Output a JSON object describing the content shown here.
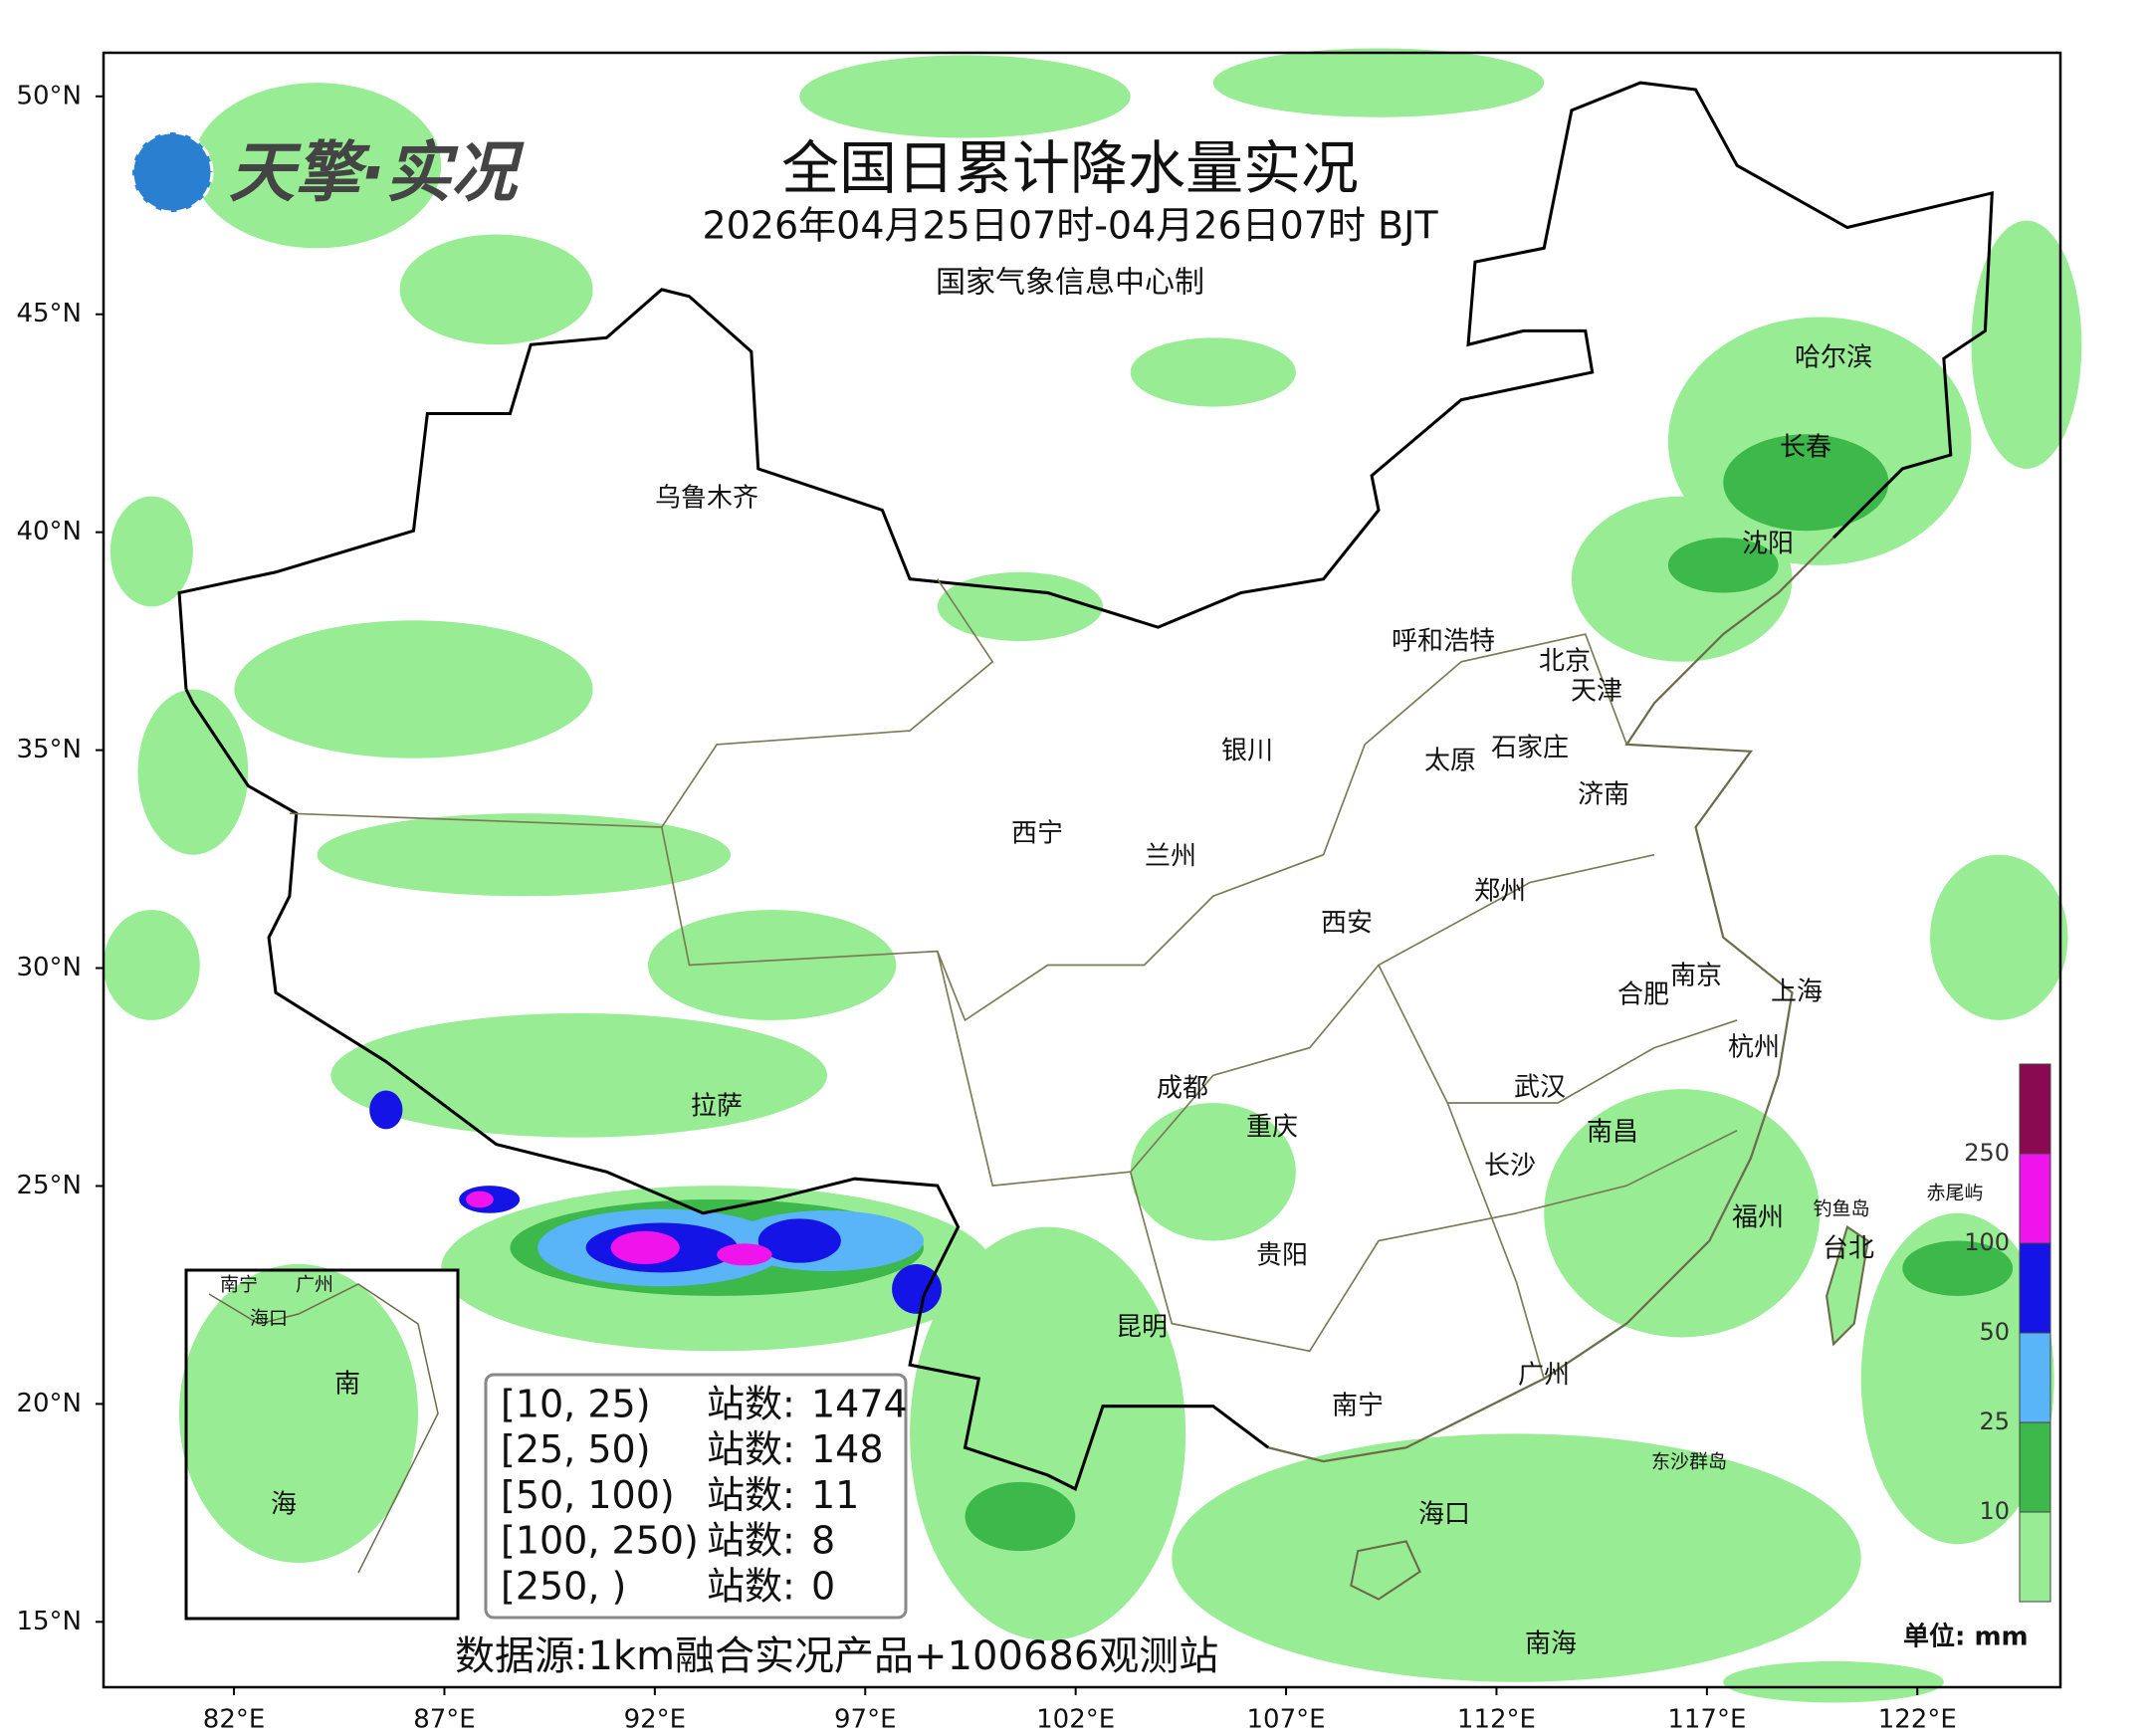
{
  "logo": "天擎·实况",
  "title": "全国日累计降水量实况",
  "subtitle": "2026年04月25日07时-04月26日07时 BJT",
  "producer": "国家气象信息中心制",
  "axes": {
    "xlim": [
      78.9,
      125.4
    ],
    "ylim": [
      13.5,
      51
    ],
    "xticks": [
      {
        "value": 82,
        "label": "82°E"
      },
      {
        "value": 87,
        "label": "87°E"
      },
      {
        "value": 92,
        "label": "92°E"
      },
      {
        "value": 97,
        "label": "97°E"
      },
      {
        "value": 102,
        "label": "102°E"
      },
      {
        "value": 107,
        "label": "107°E"
      },
      {
        "value": 112,
        "label": "112°E"
      },
      {
        "value": 117,
        "label": "117°E"
      },
      {
        "value": 122,
        "label": "122°E"
      }
    ],
    "yticks": [
      {
        "value": 50,
        "label": "50°N"
      },
      {
        "value": 45,
        "label": "45°N"
      },
      {
        "value": 40,
        "label": "40°N"
      },
      {
        "value": 35,
        "label": "35°N"
      },
      {
        "value": 30,
        "label": "30°N"
      },
      {
        "value": 25,
        "label": "25°N"
      },
      {
        "value": 20,
        "label": "20°N"
      },
      {
        "value": 15,
        "label": "15°N"
      }
    ]
  },
  "cities": [
    "乌鲁木齐",
    "哈尔滨",
    "长春",
    "沈阳",
    "呼和浩特",
    "北京",
    "天津",
    "银川",
    "石家庄",
    "太原",
    "济南",
    "西宁",
    "兰州",
    "郑州",
    "西安",
    "南京",
    "合肥",
    "上海",
    "杭州",
    "拉萨",
    "成都",
    "重庆",
    "武汉",
    "南昌",
    "长沙",
    "福州",
    "台北",
    "贵阳",
    "昆明",
    "广州",
    "南宁",
    "海口",
    "南海"
  ],
  "small_labels": [
    "钓鱼岛",
    "赤尾屿",
    "东沙群岛"
  ],
  "inset_labels": [
    "南宁",
    "广州",
    "海口",
    "南",
    "海"
  ],
  "station_counts": {
    "rows": [
      {
        "range": "[10, 25)",
        "label": "站数:",
        "count": 1474
      },
      {
        "range": "[25, 50)",
        "label": "站数:",
        "count": 148
      },
      {
        "range": "[50, 100)",
        "label": "站数:",
        "count": 11
      },
      {
        "range": "[100, 250)",
        "label": "站数:",
        "count": 8
      },
      {
        "range": "[250, )",
        "label": "站数:",
        "count": 0
      }
    ]
  },
  "colorbar": {
    "ticks": [
      10,
      25,
      50,
      100,
      250
    ],
    "colors": [
      "#98ec94",
      "#3db84a",
      "#5ab4f8",
      "#1414e6",
      "#f014ec",
      "#8a0a52"
    ],
    "unit": "单位: mm"
  },
  "source": "数据源:1km融合实况产品+100686观测站"
}
